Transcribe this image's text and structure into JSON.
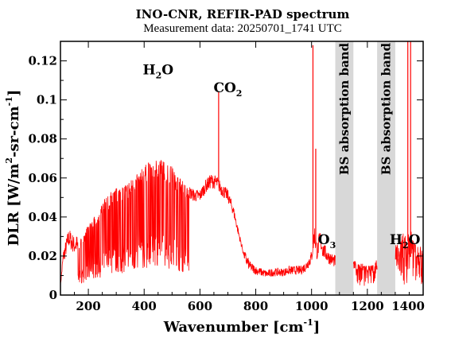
{
  "chart_data": {
    "type": "line",
    "title": "INO-CNR, REFIR-PAD spectrum",
    "subtitle": "Measurement data: 20250701_1741 UTC",
    "xlabel": {
      "text": "Wavenumber [cm",
      "sup": "-1",
      "tail": "]"
    },
    "ylabel": {
      "text": "DLR [W/m",
      "sup": "2",
      "mid": "-sr-cm",
      "sup2": "-1",
      "tail": "]"
    },
    "xlim": [
      100,
      1400
    ],
    "ylim": [
      0,
      0.13
    ],
    "x_ticks": [
      200,
      400,
      600,
      800,
      1000,
      1200,
      1400
    ],
    "y_ticks": [
      0,
      0.02,
      0.04,
      0.06,
      0.08,
      0.1,
      0.12
    ],
    "y_tick_labels": [
      "0",
      "0.02",
      "0.04",
      "0.06",
      "0.08",
      "0.1",
      "0.12"
    ],
    "grid": false,
    "line_color": "#ff0000",
    "band_color": "#d8d8d8",
    "bands": [
      {
        "x0": 1085,
        "x1": 1150,
        "label": "BS absorption band"
      },
      {
        "x0": 1235,
        "x1": 1300,
        "label": "BS absorption band"
      }
    ],
    "annotations": [
      {
        "base": "H",
        "sub": "2",
        "tail": "O",
        "x": 450,
        "y": 0.113
      },
      {
        "base": "CO",
        "sub": "2",
        "tail": "",
        "x": 700,
        "y": 0.104
      },
      {
        "base": "O",
        "sub": "3",
        "tail": "",
        "x": 1055,
        "y": 0.026
      },
      {
        "base": "H",
        "sub": "2",
        "tail": "O",
        "x": 1335,
        "y": 0.026
      }
    ],
    "envelope": {
      "x": [
        100,
        110,
        130,
        150,
        170,
        180,
        200,
        220,
        240,
        260,
        280,
        300,
        320,
        340,
        360,
        380,
        400,
        420,
        440,
        460,
        480,
        500,
        520,
        540,
        560,
        580,
        600,
        620,
        640,
        660,
        680,
        700,
        720,
        740,
        760,
        780,
        800,
        820,
        840,
        860,
        880,
        900,
        920,
        940,
        960,
        980,
        1000,
        1010,
        1020,
        1030,
        1040,
        1060,
        1080,
        1160,
        1180,
        1200,
        1220,
        1230,
        1310,
        1320,
        1330,
        1340,
        1350,
        1360,
        1380,
        1400
      ],
      "y": [
        0.005,
        0.02,
        0.03,
        0.026,
        0.028,
        0.031,
        0.036,
        0.04,
        0.044,
        0.05,
        0.053,
        0.055,
        0.056,
        0.058,
        0.06,
        0.063,
        0.066,
        0.069,
        0.07,
        0.07,
        0.068,
        0.066,
        0.062,
        0.058,
        0.055,
        0.053,
        0.053,
        0.058,
        0.061,
        0.06,
        0.056,
        0.053,
        0.045,
        0.032,
        0.02,
        0.015,
        0.013,
        0.012,
        0.011,
        0.012,
        0.012,
        0.012,
        0.013,
        0.013,
        0.013,
        0.015,
        0.02,
        0.032,
        0.022,
        0.03,
        0.024,
        0.02,
        0.018,
        0.015,
        0.015,
        0.014,
        0.014,
        0.016,
        0.022,
        0.025,
        0.028,
        0.025,
        0.03,
        0.026,
        0.022,
        0.02
      ]
    },
    "spikes": [
      {
        "x": 667,
        "y": 0.104
      },
      {
        "x": 1005,
        "y": 0.128
      },
      {
        "x": 1015,
        "y": 0.075
      },
      {
        "x": 1345,
        "y": 0.13
      },
      {
        "x": 1355,
        "y": 0.13
      }
    ]
  }
}
